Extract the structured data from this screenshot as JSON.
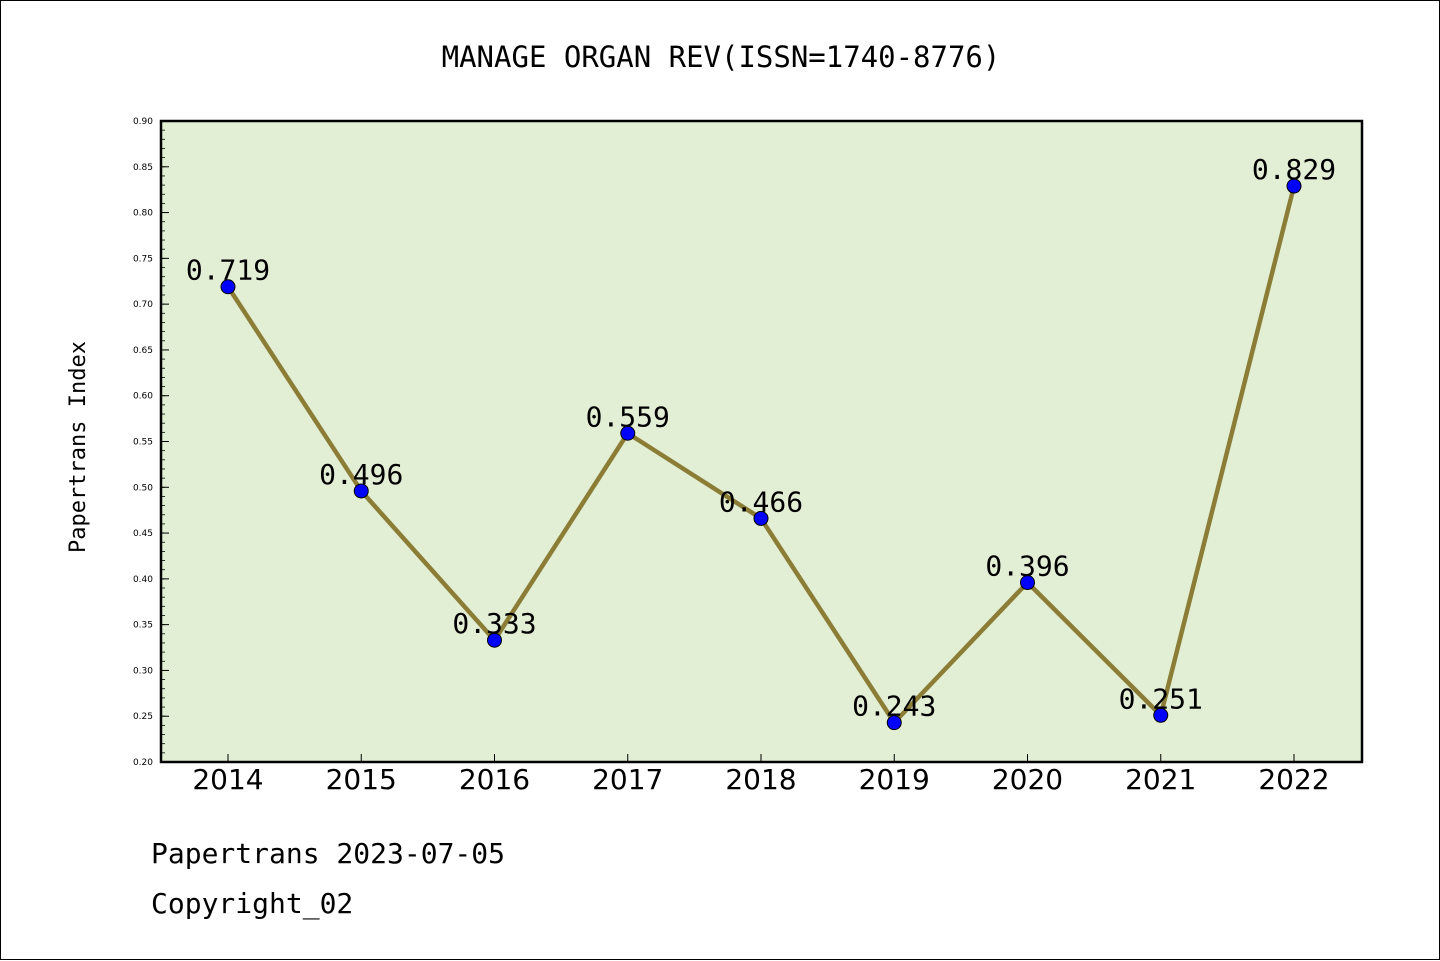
{
  "chart_data": {
    "type": "line",
    "title": "MANAGE ORGAN REV(ISSN=1740-8776)",
    "xlabel": "",
    "ylabel": "Papertrans Index",
    "categories": [
      "2014",
      "2015",
      "2016",
      "2017",
      "2018",
      "2019",
      "2020",
      "2021",
      "2022"
    ],
    "series": [
      {
        "values": [
          0.719,
          0.496,
          0.333,
          0.559,
          0.466,
          0.243,
          0.396,
          0.251,
          0.829
        ],
        "labels": [
          "0.719",
          "0.496",
          "0.333",
          "0.559",
          "0.466",
          "0.243",
          "0.396",
          "0.251",
          "0.829"
        ]
      }
    ],
    "ylim": [
      0.2,
      0.9
    ],
    "yticks": [
      "0.20",
      "0.25",
      "0.30",
      "0.35",
      "0.40",
      "0.45",
      "0.50",
      "0.55",
      "0.60",
      "0.65",
      "0.70",
      "0.75",
      "0.80",
      "0.85",
      "0.90"
    ],
    "grid": false,
    "colors": {
      "plot_background": "#e2efd5",
      "line": "#8b7d36",
      "marker": "#0000ff"
    }
  },
  "footer": {
    "date_line": "Papertrans 2023-07-05",
    "copyright": "Copyright_02"
  }
}
